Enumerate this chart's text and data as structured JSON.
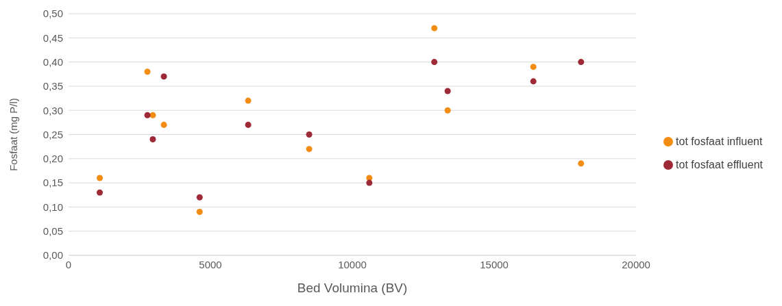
{
  "chart_data": {
    "type": "scatter",
    "xlabel": "Bed Volumina (BV)",
    "ylabel": "Fosfaat (mg P/l)",
    "xlim": [
      0,
      20000
    ],
    "xticks": [
      0,
      5000,
      10000,
      15000,
      20000
    ],
    "ylim": [
      0,
      0.5
    ],
    "yticks": [
      {
        "value": 0,
        "label": "0,00"
      },
      {
        "value": 0.05,
        "label": "0,05"
      },
      {
        "value": 0.1,
        "label": "0,10"
      },
      {
        "value": 0.15,
        "label": "0,15"
      },
      {
        "value": 0.2,
        "label": "0,20"
      },
      {
        "value": 0.25,
        "label": "0,25"
      },
      {
        "value": 0.3,
        "label": "0,30"
      },
      {
        "value": 0.35,
        "label": "0,35"
      },
      {
        "value": 0.4,
        "label": "0,40"
      },
      {
        "value": 0.45,
        "label": "0,45"
      },
      {
        "value": 0.5,
        "label": "0,50"
      }
    ],
    "grid": "y",
    "legend": "right",
    "marker": "circle",
    "x": [
      1100,
      2780,
      2970,
      3360,
      4620,
      6330,
      8480,
      10600,
      12890,
      13360,
      16380,
      18060
    ],
    "series": [
      {
        "name": "tot fosfaat influent",
        "color": "#f28c13",
        "values": [
          0.16,
          0.38,
          0.29,
          0.27,
          0.09,
          0.32,
          0.22,
          0.16,
          0.47,
          0.3,
          0.39,
          0.19
        ]
      },
      {
        "name": "tot fosfaat effluent",
        "color": "#9e2a37",
        "values": [
          0.13,
          0.29,
          0.24,
          0.37,
          0.12,
          0.27,
          0.25,
          0.15,
          0.4,
          0.34,
          0.36,
          0.4
        ]
      }
    ]
  }
}
